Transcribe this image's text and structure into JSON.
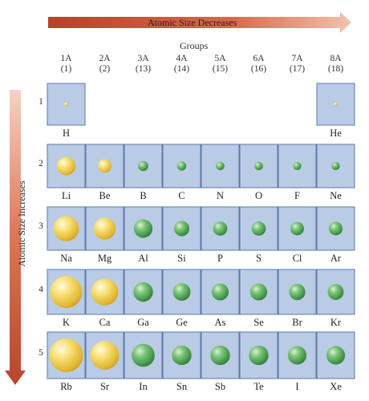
{
  "arrows": {
    "horizontal_label": "Atomic Size Decreases",
    "vertical_label": "Atomic Size Increases"
  },
  "groups_title": "Groups",
  "groups": [
    {
      "label": "1A",
      "number": "(1)"
    },
    {
      "label": "2A",
      "number": "(2)"
    },
    {
      "label": "3A",
      "number": "(13)"
    },
    {
      "label": "4A",
      "number": "(14)"
    },
    {
      "label": "5A",
      "number": "(15)"
    },
    {
      "label": "6A",
      "number": "(16)"
    },
    {
      "label": "7A",
      "number": "(17)"
    },
    {
      "label": "8A",
      "number": "(18)"
    }
  ],
  "colors": {
    "metal_atom": "#f2d34a",
    "nonmetal_atom": "#58ab5a",
    "cell_fill": "#b9cbe5",
    "cell_border": "#5a7aa8",
    "arrow": "#d0573a"
  },
  "periods": [
    {
      "label": "1",
      "elements": [
        {
          "symbol": "H",
          "group": 0,
          "type": "metal",
          "relative_size": 0.12
        },
        {
          "symbol": "He",
          "group": 7,
          "type": "metal",
          "relative_size": 0.1
        }
      ]
    },
    {
      "label": "2",
      "elements": [
        {
          "symbol": "Li",
          "group": 0,
          "type": "metal",
          "relative_size": 0.55
        },
        {
          "symbol": "Be",
          "group": 1,
          "type": "metal",
          "relative_size": 0.4
        },
        {
          "symbol": "B",
          "group": 2,
          "type": "nonmetal",
          "relative_size": 0.3
        },
        {
          "symbol": "C",
          "group": 3,
          "type": "nonmetal",
          "relative_size": 0.27
        },
        {
          "symbol": "N",
          "group": 4,
          "type": "nonmetal",
          "relative_size": 0.25
        },
        {
          "symbol": "O",
          "group": 5,
          "type": "nonmetal",
          "relative_size": 0.25
        },
        {
          "symbol": "F",
          "group": 6,
          "type": "nonmetal",
          "relative_size": 0.24
        },
        {
          "symbol": "Ne",
          "group": 7,
          "type": "nonmetal",
          "relative_size": 0.24
        }
      ]
    },
    {
      "label": "3",
      "elements": [
        {
          "symbol": "Na",
          "group": 0,
          "type": "metal",
          "relative_size": 0.75
        },
        {
          "symbol": "Mg",
          "group": 1,
          "type": "metal",
          "relative_size": 0.65
        },
        {
          "symbol": "Al",
          "group": 2,
          "type": "nonmetal",
          "relative_size": 0.55
        },
        {
          "symbol": "Si",
          "group": 3,
          "type": "nonmetal",
          "relative_size": 0.45
        },
        {
          "symbol": "P",
          "group": 4,
          "type": "nonmetal",
          "relative_size": 0.42
        },
        {
          "symbol": "S",
          "group": 5,
          "type": "nonmetal",
          "relative_size": 0.42
        },
        {
          "symbol": "Cl",
          "group": 6,
          "type": "nonmetal",
          "relative_size": 0.4
        },
        {
          "symbol": "Ar",
          "group": 7,
          "type": "nonmetal",
          "relative_size": 0.4
        }
      ]
    },
    {
      "label": "4",
      "elements": [
        {
          "symbol": "K",
          "group": 0,
          "type": "metal",
          "relative_size": 0.95
        },
        {
          "symbol": "Ca",
          "group": 1,
          "type": "metal",
          "relative_size": 0.8
        },
        {
          "symbol": "Ga",
          "group": 2,
          "type": "nonmetal",
          "relative_size": 0.58
        },
        {
          "symbol": "Ge",
          "group": 3,
          "type": "nonmetal",
          "relative_size": 0.52
        },
        {
          "symbol": "As",
          "group": 4,
          "type": "nonmetal",
          "relative_size": 0.5
        },
        {
          "symbol": "Se",
          "group": 5,
          "type": "nonmetal",
          "relative_size": 0.5
        },
        {
          "symbol": "Br",
          "group": 6,
          "type": "nonmetal",
          "relative_size": 0.48
        },
        {
          "symbol": "Kr",
          "group": 7,
          "type": "nonmetal",
          "relative_size": 0.47
        }
      ]
    },
    {
      "label": "5",
      "elements": [
        {
          "symbol": "Rb",
          "group": 0,
          "type": "metal",
          "relative_size": 1.0
        },
        {
          "symbol": "Sr",
          "group": 1,
          "type": "metal",
          "relative_size": 0.85
        },
        {
          "symbol": "In",
          "group": 2,
          "type": "nonmetal",
          "relative_size": 0.68
        },
        {
          "symbol": "Sn",
          "group": 3,
          "type": "nonmetal",
          "relative_size": 0.58
        },
        {
          "symbol": "Sb",
          "group": 4,
          "type": "nonmetal",
          "relative_size": 0.58
        },
        {
          "symbol": "Te",
          "group": 5,
          "type": "nonmetal",
          "relative_size": 0.58
        },
        {
          "symbol": "I",
          "group": 6,
          "type": "nonmetal",
          "relative_size": 0.55
        },
        {
          "symbol": "Xe",
          "group": 7,
          "type": "nonmetal",
          "relative_size": 0.55
        }
      ]
    }
  ]
}
